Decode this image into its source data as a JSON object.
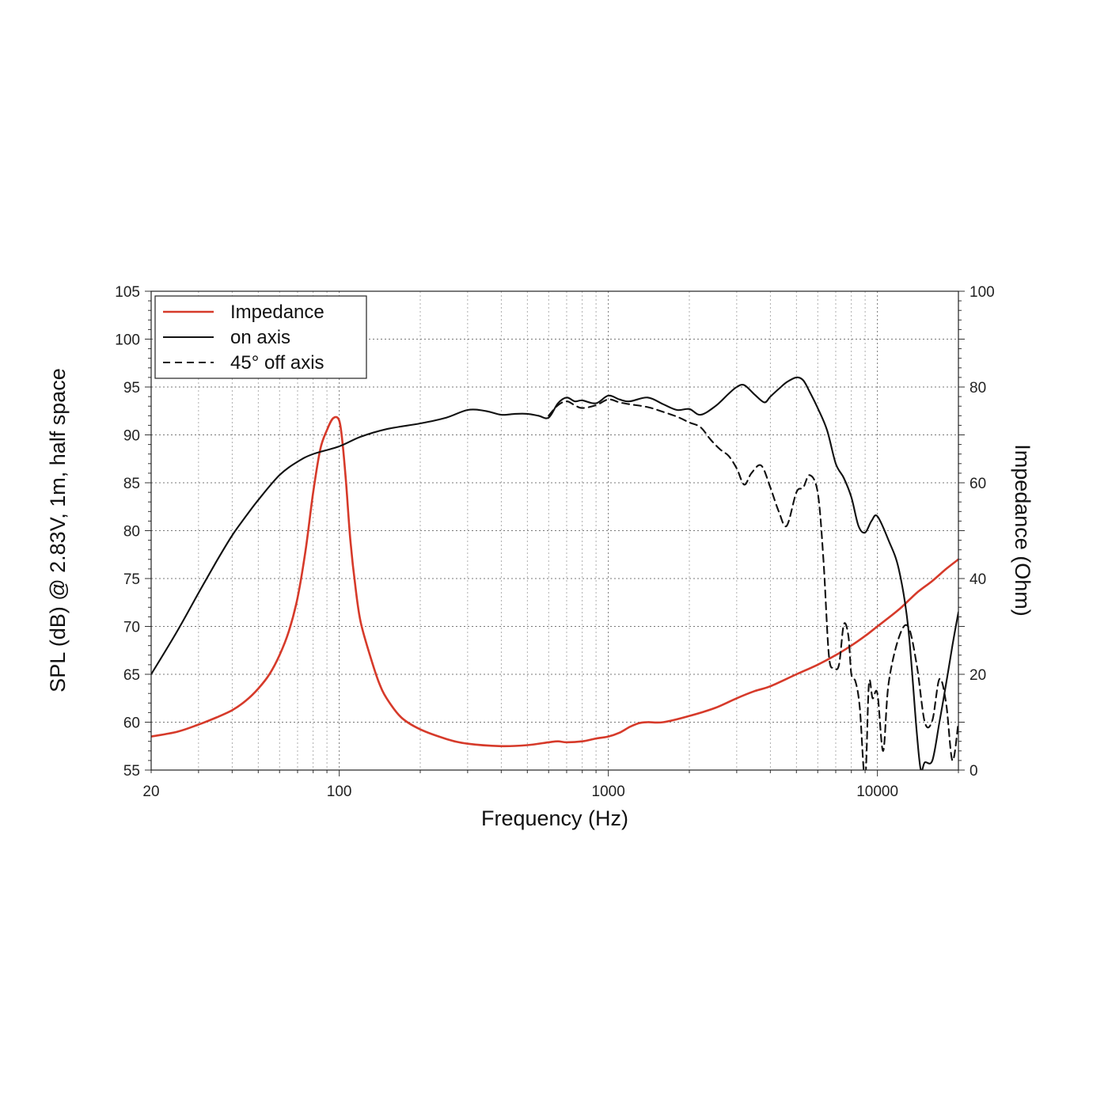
{
  "chart_data": {
    "type": "line",
    "title": "",
    "xlabel": "Frequency (Hz)",
    "ylabel": "SPL (dB) @ 2.83V, 1m, half space",
    "y2label": "Impedance (Ohm)",
    "xscale": "log",
    "xlim": [
      20,
      20000
    ],
    "ylim": [
      55,
      105
    ],
    "y2lim": [
      0,
      100
    ],
    "grid": true,
    "legend_position": "top-left",
    "x_tick_labels": [
      "20",
      "100",
      "1000",
      "10000"
    ],
    "x_tick_values": [
      20,
      100,
      1000,
      10000
    ],
    "y_tick_labels": [
      "55",
      "60",
      "65",
      "70",
      "75",
      "80",
      "85",
      "90",
      "95",
      "100",
      "105"
    ],
    "y_tick_values": [
      55,
      60,
      65,
      70,
      75,
      80,
      85,
      90,
      95,
      100,
      105
    ],
    "y2_tick_labels": [
      "0",
      "20",
      "40",
      "60",
      "80",
      "100"
    ],
    "y2_tick_values": [
      0,
      20,
      40,
      60,
      80,
      100
    ],
    "series": [
      {
        "name": "Impedance",
        "axis": "right",
        "color": "#d63a2a",
        "style": "solid",
        "x": [
          20,
          25,
          30,
          35,
          40,
          45,
          50,
          55,
          60,
          65,
          70,
          75,
          80,
          85,
          90,
          95,
          100,
          103,
          106,
          110,
          115,
          120,
          130,
          140,
          150,
          170,
          200,
          250,
          300,
          400,
          500,
          600,
          650,
          700,
          800,
          900,
          1000,
          1100,
          1200,
          1300,
          1400,
          1600,
          2000,
          2500,
          3000,
          3500,
          4000,
          5000,
          6000,
          7000,
          8000,
          9000,
          10000,
          12000,
          14000,
          16000,
          18000,
          20000
        ],
        "y": [
          7,
          8,
          9.5,
          11,
          12.5,
          14.5,
          17,
          20,
          24,
          29,
          36,
          46,
          58,
          67,
          71,
          73.5,
          73,
          68,
          60,
          48,
          38,
          31,
          24,
          18.5,
          15,
          11,
          8.5,
          6.5,
          5.5,
          5,
          5.2,
          5.8,
          6,
          5.8,
          6,
          6.6,
          7,
          7.8,
          9,
          9.8,
          10,
          10,
          11.3,
          13,
          15,
          16.5,
          17.5,
          20,
          22,
          24,
          26,
          28,
          30,
          33.5,
          37,
          39.5,
          42,
          44
        ]
      },
      {
        "name": "on axis",
        "axis": "left",
        "color": "#111111",
        "style": "solid",
        "x": [
          20,
          25,
          30,
          35,
          40,
          45,
          50,
          60,
          70,
          80,
          100,
          120,
          150,
          200,
          250,
          300,
          350,
          400,
          450,
          500,
          550,
          600,
          650,
          700,
          750,
          800,
          900,
          1000,
          1100,
          1200,
          1400,
          1600,
          1800,
          2000,
          2200,
          2500,
          2800,
          3000,
          3200,
          3500,
          3800,
          4000,
          4300,
          4600,
          5000,
          5300,
          5600,
          6000,
          6500,
          7000,
          7500,
          8000,
          8500,
          9000,
          9500,
          10000,
          11000,
          12000,
          13000,
          14000,
          14500,
          15000,
          16000,
          17000,
          18000,
          19000,
          20000
        ],
        "y": [
          65,
          69.5,
          73.5,
          76.8,
          79.5,
          81.5,
          83.2,
          85.8,
          87.2,
          88,
          88.8,
          89.8,
          90.6,
          91.2,
          91.8,
          92.6,
          92.5,
          92.1,
          92.2,
          92.2,
          92,
          91.8,
          93.3,
          93.9,
          93.5,
          93.6,
          93.3,
          94.1,
          93.7,
          93.5,
          93.9,
          93.2,
          92.6,
          92.7,
          92.1,
          93,
          94.3,
          95,
          95.2,
          94.2,
          93.4,
          94,
          94.8,
          95.5,
          96,
          95.7,
          94.5,
          92.8,
          90.5,
          87,
          85.5,
          83.5,
          80.5,
          79.8,
          81,
          81.5,
          79,
          76,
          70,
          59,
          55,
          55.8,
          56,
          60,
          64,
          68,
          71.5
        ]
      },
      {
        "name": "45° off axis",
        "axis": "left",
        "color": "#111111",
        "style": "dashed",
        "x": [
          600,
          650,
          700,
          750,
          800,
          900,
          1000,
          1100,
          1200,
          1400,
          1600,
          1800,
          2000,
          2200,
          2400,
          2600,
          2800,
          3000,
          3200,
          3400,
          3700,
          4000,
          4300,
          4600,
          5000,
          5300,
          5600,
          6000,
          6300,
          6600,
          6900,
          7200,
          7500,
          7800,
          8000,
          8300,
          8600,
          9000,
          9300,
          9600,
          10000,
          10500,
          11000,
          12000,
          13000,
          14000,
          15000,
          16000,
          17000,
          18000,
          19000,
          20000
        ],
        "y": [
          92,
          93.1,
          93.5,
          93.1,
          92.8,
          93.1,
          93.7,
          93.4,
          93.2,
          92.9,
          92.4,
          91.9,
          91.3,
          90.8,
          89.5,
          88.5,
          87.8,
          86.5,
          84.8,
          86,
          86.8,
          84.5,
          82,
          80.5,
          84,
          84.5,
          85.8,
          84,
          77,
          67,
          65.7,
          66,
          70.2,
          69,
          65,
          64.2,
          61.5,
          54,
          64,
          62.5,
          63,
          57,
          64,
          68.8,
          70,
          66,
          60,
          60.2,
          64.5,
          62,
          56,
          60
        ]
      }
    ]
  }
}
